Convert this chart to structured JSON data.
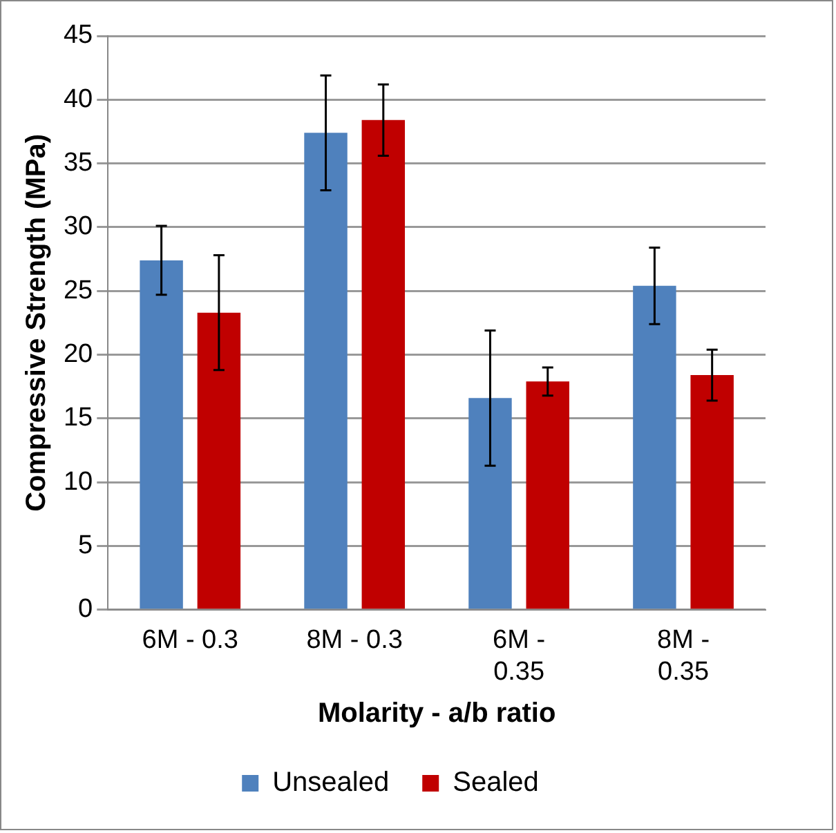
{
  "chart_data": {
    "type": "bar",
    "xlabel": "Molarity - a/b ratio",
    "ylabel": "Compressive Strength (MPa)",
    "categories": [
      "6M - 0.3",
      "8M - 0.3",
      "6M - 0.35",
      "8M - 0.35"
    ],
    "series": [
      {
        "name": "Unsealed",
        "color": "#4f81bd",
        "values": [
          27.4,
          37.4,
          16.6,
          25.4
        ],
        "errors": [
          2.7,
          4.5,
          5.3,
          3.0
        ]
      },
      {
        "name": "Sealed",
        "color": "#c00000",
        "values": [
          23.3,
          38.4,
          17.9,
          18.4
        ],
        "errors": [
          4.5,
          2.8,
          1.1,
          2.0
        ]
      }
    ],
    "ylim": [
      0,
      45
    ],
    "yticks": [
      0,
      5,
      10,
      15,
      20,
      25,
      30,
      35,
      40,
      45
    ],
    "grid": "y",
    "legend": "bottom"
  }
}
